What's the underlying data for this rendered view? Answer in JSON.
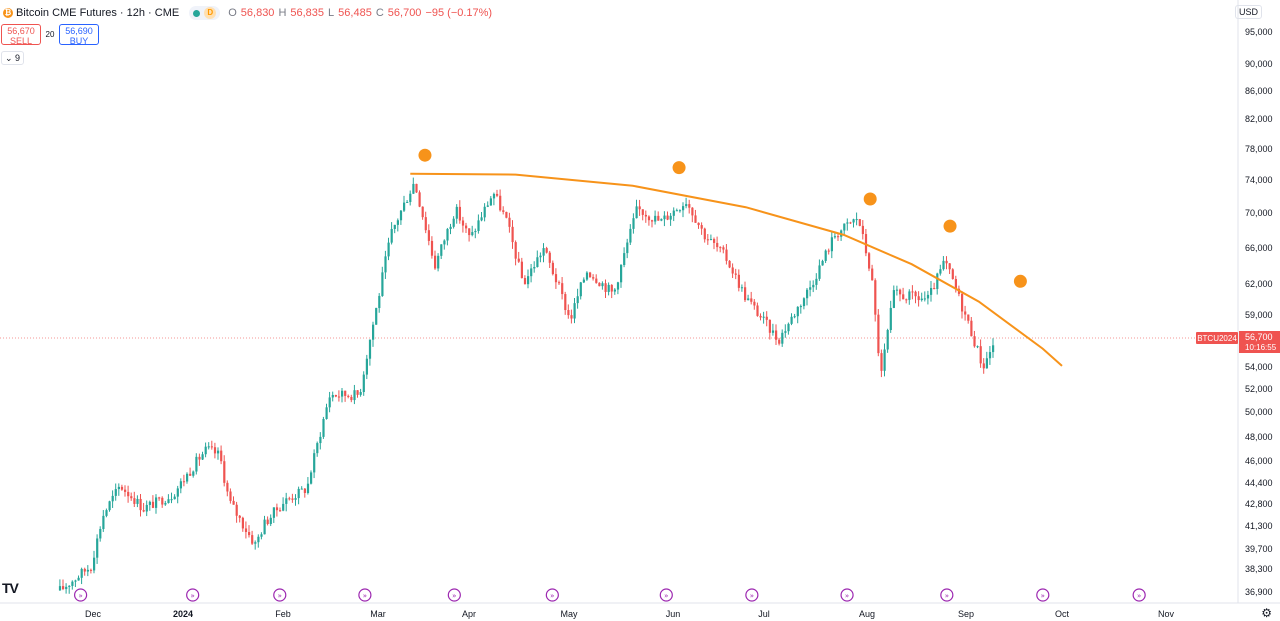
{
  "header": {
    "symbol_title": "Bitcoin CME Futures · 12h · CME",
    "market_status_letter": "D",
    "ohlc": {
      "o_label": "O",
      "o": "56,830",
      "h_label": "H",
      "h": "56,835",
      "l_label": "L",
      "l": "56,485",
      "c_label": "C",
      "c": "56,700",
      "change": "−95 (−0.17%)"
    }
  },
  "trade": {
    "sell_price": "56,670",
    "sell_label": "SELL",
    "spread": "20",
    "buy_price": "56,690",
    "buy_label": "BUY"
  },
  "indicators_toggle": "9",
  "currency": "USD",
  "price_label": {
    "ticker": "BTCU2024",
    "price": "56,700",
    "countdown": "10:16:55"
  },
  "colors": {
    "up": "#26a69a",
    "down": "#ef5350",
    "trend": "#f7931a",
    "grid": "#e0e3eb"
  },
  "icons": {
    "settings": "gear-icon",
    "logo": "tradingview-logo",
    "event": "arrow-event-icon"
  },
  "chart_data": {
    "type": "candlestick",
    "yaxis_ticks": [
      95000,
      90000,
      86000,
      82000,
      78000,
      74000,
      70000,
      66000,
      62000,
      59000,
      56700,
      54000,
      52000,
      50000,
      48000,
      46000,
      44400,
      42800,
      41300,
      39700,
      38300,
      36900
    ],
    "yaxis_labels": [
      "95,000",
      "90,000",
      "86,000",
      "82,000",
      "78,000",
      "74,000",
      "70,000",
      "66,000",
      "62,000",
      "59,000",
      "56,700",
      "54,000",
      "52,000",
      "50,000",
      "48,000",
      "46,000",
      "44,400",
      "42,800",
      "41,300",
      "39,700",
      "38,300",
      "36,900"
    ],
    "xaxis_labels": [
      "Dec",
      "2024",
      "Feb",
      "Mar",
      "Apr",
      "May",
      "Jun",
      "Jul",
      "Aug",
      "Sep",
      "Oct",
      "Nov"
    ],
    "current_price": 56700,
    "price_path": [
      [
        "2023-11-20",
        37000
      ],
      [
        "2023-11-30",
        38500
      ],
      [
        "2023-12-04",
        42000
      ],
      [
        "2023-12-10",
        44200
      ],
      [
        "2023-12-18",
        42500
      ],
      [
        "2023-12-28",
        43500
      ],
      [
        "2024-01-08",
        47000
      ],
      [
        "2024-01-12",
        46500
      ],
      [
        "2024-01-15",
        43000
      ],
      [
        "2024-01-23",
        40000
      ],
      [
        "2024-01-26",
        41500
      ],
      [
        "2024-02-01",
        43000
      ],
      [
        "2024-02-08",
        44000
      ],
      [
        "2024-02-15",
        51500
      ],
      [
        "2024-02-24",
        51500
      ],
      [
        "2024-03-01",
        61000
      ],
      [
        "2024-03-05",
        67500
      ],
      [
        "2024-03-13",
        73800
      ],
      [
        "2024-03-20",
        64000
      ],
      [
        "2024-03-27",
        70500
      ],
      [
        "2024-04-01",
        67000
      ],
      [
        "2024-04-08",
        72500
      ],
      [
        "2024-04-12",
        69000
      ],
      [
        "2024-04-17",
        62000
      ],
      [
        "2024-04-23",
        66000
      ],
      [
        "2024-05-01",
        58500
      ],
      [
        "2024-05-06",
        63500
      ],
      [
        "2024-05-14",
        61000
      ],
      [
        "2024-05-21",
        70500
      ],
      [
        "2024-05-28",
        69000
      ],
      [
        "2024-06-05",
        71500
      ],
      [
        "2024-06-11",
        67500
      ],
      [
        "2024-06-18",
        65000
      ],
      [
        "2024-06-24",
        61000
      ],
      [
        "2024-07-05",
        56500
      ],
      [
        "2024-07-15",
        62000
      ],
      [
        "2024-07-22",
        67500
      ],
      [
        "2024-07-29",
        69500
      ],
      [
        "2024-08-02",
        63000
      ],
      [
        "2024-08-05",
        53000
      ],
      [
        "2024-08-09",
        61000
      ],
      [
        "2024-08-20",
        60500
      ],
      [
        "2024-08-25",
        64500
      ],
      [
        "2024-09-01",
        58500
      ],
      [
        "2024-09-06",
        54000
      ],
      [
        "2024-09-10",
        56700
      ]
    ],
    "annotations": [
      {
        "type": "trend_curve",
        "color": "#f7931a",
        "points": [
          [
            "2024-03-12",
            74800
          ],
          [
            "2024-04-15",
            74700
          ],
          [
            "2024-05-20",
            73300
          ],
          [
            "2024-06-25",
            70700
          ],
          [
            "2024-07-25",
            67500
          ],
          [
            "2024-08-15",
            64200
          ],
          [
            "2024-09-05",
            60300
          ],
          [
            "2024-09-25",
            55700
          ],
          [
            "2024-10-01",
            54100
          ]
        ]
      },
      {
        "type": "marker",
        "date": "2024-03-17",
        "price": 77200
      },
      {
        "type": "marker",
        "date": "2024-06-03",
        "price": 75600
      },
      {
        "type": "marker",
        "date": "2024-08-02",
        "price": 71700
      },
      {
        "type": "marker",
        "date": "2024-08-27",
        "price": 68500
      },
      {
        "type": "marker",
        "date": "2024-09-18",
        "price": 62300
      }
    ],
    "event_icons_dates": [
      "2023-11-27",
      "2024-01-04",
      "2024-01-31",
      "2024-02-26",
      "2024-03-27",
      "2024-04-26",
      "2024-05-30",
      "2024-06-27",
      "2024-07-26",
      "2024-08-26",
      "2024-09-25",
      "2024-10-24"
    ]
  }
}
